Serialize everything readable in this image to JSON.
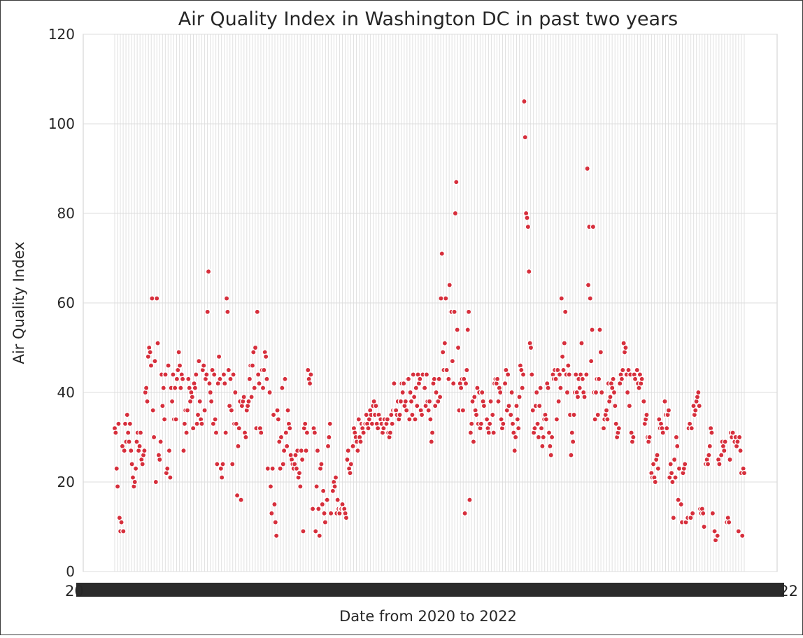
{
  "chart_data": {
    "type": "scatter",
    "title": "Air Quality Index in Washington DC in past two years",
    "xlabel": "Date from 2020 to 2022",
    "ylabel": "Air Quality Index",
    "ylim": [
      0,
      120
    ],
    "yticks": [
      0,
      20,
      40,
      60,
      80,
      100,
      120
    ],
    "grid": true,
    "marker_color": "#d62f3c",
    "marker_edge_color": "#ffffff",
    "x_tick_labels_note": "dense overlapping date labels",
    "values": [
      32,
      31,
      23,
      19,
      33,
      12,
      9,
      11,
      28,
      9,
      27,
      33,
      29,
      35,
      31,
      29,
      33,
      27,
      24,
      21,
      19,
      20,
      23,
      29,
      31,
      27,
      28,
      31,
      25,
      24,
      26,
      27,
      40,
      41,
      38,
      48,
      50,
      49,
      46,
      61,
      36,
      30,
      47,
      20,
      61,
      51,
      26,
      25,
      29,
      44,
      37,
      41,
      34,
      44,
      22,
      23,
      46,
      27,
      21,
      41,
      38,
      44,
      34,
      41,
      34,
      43,
      45,
      49,
      46,
      41,
      44,
      43,
      27,
      33,
      36,
      31,
      36,
      43,
      41,
      38,
      40,
      39,
      32,
      42,
      41,
      44,
      33,
      35,
      47,
      38,
      34,
      33,
      45,
      46,
      36,
      43,
      44,
      58,
      67,
      42,
      40,
      38,
      45,
      33,
      44,
      34,
      31,
      24,
      42,
      48,
      43,
      23,
      21,
      24,
      44,
      42,
      31,
      61,
      58,
      45,
      37,
      43,
      36,
      24,
      44,
      33,
      40,
      33,
      17,
      28,
      32,
      38,
      16,
      37,
      38,
      39,
      31,
      30,
      36,
      37,
      38,
      43,
      46,
      39,
      46,
      49,
      41,
      50,
      32,
      58,
      44,
      42,
      32,
      31,
      45,
      41,
      45,
      49,
      48,
      43,
      23,
      40,
      40,
      19,
      13,
      23,
      35,
      15,
      11,
      8,
      36,
      34,
      29,
      23,
      30,
      41,
      24,
      27,
      43,
      31,
      28,
      36,
      33,
      32,
      26,
      25,
      24,
      23,
      24,
      26,
      23,
      27,
      21,
      22,
      19,
      27,
      25,
      9,
      32,
      33,
      27,
      31,
      45,
      43,
      42,
      44,
      14,
      14,
      32,
      31,
      9,
      19,
      27,
      14,
      8,
      23,
      24,
      15,
      18,
      13,
      11,
      16,
      16,
      28,
      30,
      33,
      13,
      18,
      18,
      20,
      19,
      21,
      13,
      16,
      14,
      13,
      14,
      14,
      15,
      14,
      14,
      13,
      12,
      25,
      27,
      23,
      22,
      24,
      28,
      28,
      32,
      31,
      30,
      29,
      27,
      34,
      30,
      29,
      33,
      32,
      31,
      33,
      33,
      35,
      33,
      32,
      34,
      36,
      35,
      33,
      37,
      38,
      35,
      37,
      33,
      32,
      35,
      34,
      34,
      33,
      31,
      32,
      34,
      33,
      33,
      34,
      31,
      30,
      31,
      35,
      33,
      36,
      42,
      36,
      36,
      35,
      38,
      34,
      35,
      38,
      42,
      40,
      42,
      37,
      38,
      36,
      43,
      43,
      34,
      40,
      38,
      35,
      44,
      39,
      34,
      41,
      37,
      44,
      42,
      43,
      36,
      35,
      44,
      41,
      41,
      37,
      44,
      38,
      36,
      38,
      34,
      29,
      31,
      42,
      43,
      37,
      40,
      38,
      38,
      43,
      39,
      61,
      71,
      49,
      45,
      51,
      61,
      45,
      43,
      43,
      64,
      58,
      58,
      47,
      42,
      58,
      80,
      87,
      54,
      50,
      36,
      42,
      41,
      43,
      36,
      43,
      13,
      42,
      45,
      54,
      58,
      16,
      31,
      33,
      38,
      29,
      39,
      36,
      35,
      41,
      33,
      40,
      32,
      33,
      40,
      38,
      37,
      34,
      34,
      34,
      32,
      31,
      33,
      38,
      35,
      35,
      31,
      42,
      43,
      42,
      43,
      38,
      41,
      40,
      34,
      32,
      33,
      42,
      42,
      45,
      36,
      44,
      37,
      35,
      35,
      40,
      33,
      31,
      27,
      30,
      37,
      34,
      32,
      39,
      46,
      45,
      41,
      44,
      105,
      97,
      80,
      79,
      77,
      67,
      51,
      50,
      44,
      36,
      31,
      32,
      37,
      40,
      33,
      30,
      37,
      41,
      32,
      28,
      30,
      34,
      35,
      34,
      42,
      41,
      31,
      28,
      26,
      30,
      44,
      43,
      45,
      43,
      34,
      45,
      38,
      44,
      41,
      61,
      48,
      45,
      51,
      58,
      44,
      40,
      46,
      44,
      35,
      26,
      31,
      29,
      35,
      40,
      44,
      40,
      39,
      43,
      41,
      44,
      51,
      43,
      40,
      39,
      44,
      44,
      90,
      64,
      77,
      61,
      47,
      54,
      77,
      40,
      34,
      40,
      43,
      35,
      43,
      54,
      49,
      40,
      32,
      32,
      34,
      35,
      36,
      34,
      42,
      38,
      39,
      42,
      41,
      43,
      40,
      37,
      33,
      30,
      31,
      32,
      42,
      44,
      43,
      45,
      51,
      49,
      50,
      44,
      40,
      45,
      37,
      44,
      31,
      29,
      30,
      44,
      43,
      45,
      45,
      42,
      41,
      44,
      42,
      43,
      38,
      38,
      33,
      34,
      35,
      30,
      29,
      30,
      22,
      22,
      21,
      24,
      21,
      20,
      25,
      26,
      23,
      34,
      32,
      33,
      32,
      31,
      38,
      38,
      35,
      32,
      35,
      36,
      21,
      24,
      22,
      20,
      12,
      25,
      21,
      30,
      28,
      16,
      23,
      15,
      15,
      11,
      22,
      23,
      24,
      11,
      12,
      12,
      32,
      33,
      12,
      32,
      13,
      37,
      35,
      36,
      38,
      39,
      40,
      37,
      14,
      13,
      14,
      13,
      10,
      24,
      24,
      25,
      24,
      26,
      28,
      32,
      31,
      13,
      9,
      9,
      7,
      8,
      8,
      25,
      24,
      26,
      26,
      29,
      28,
      27,
      29,
      11,
      11,
      12,
      11,
      25,
      31,
      30,
      31,
      29,
      29,
      30,
      28,
      29,
      9,
      30,
      27,
      22,
      8,
      23,
      22
    ]
  }
}
